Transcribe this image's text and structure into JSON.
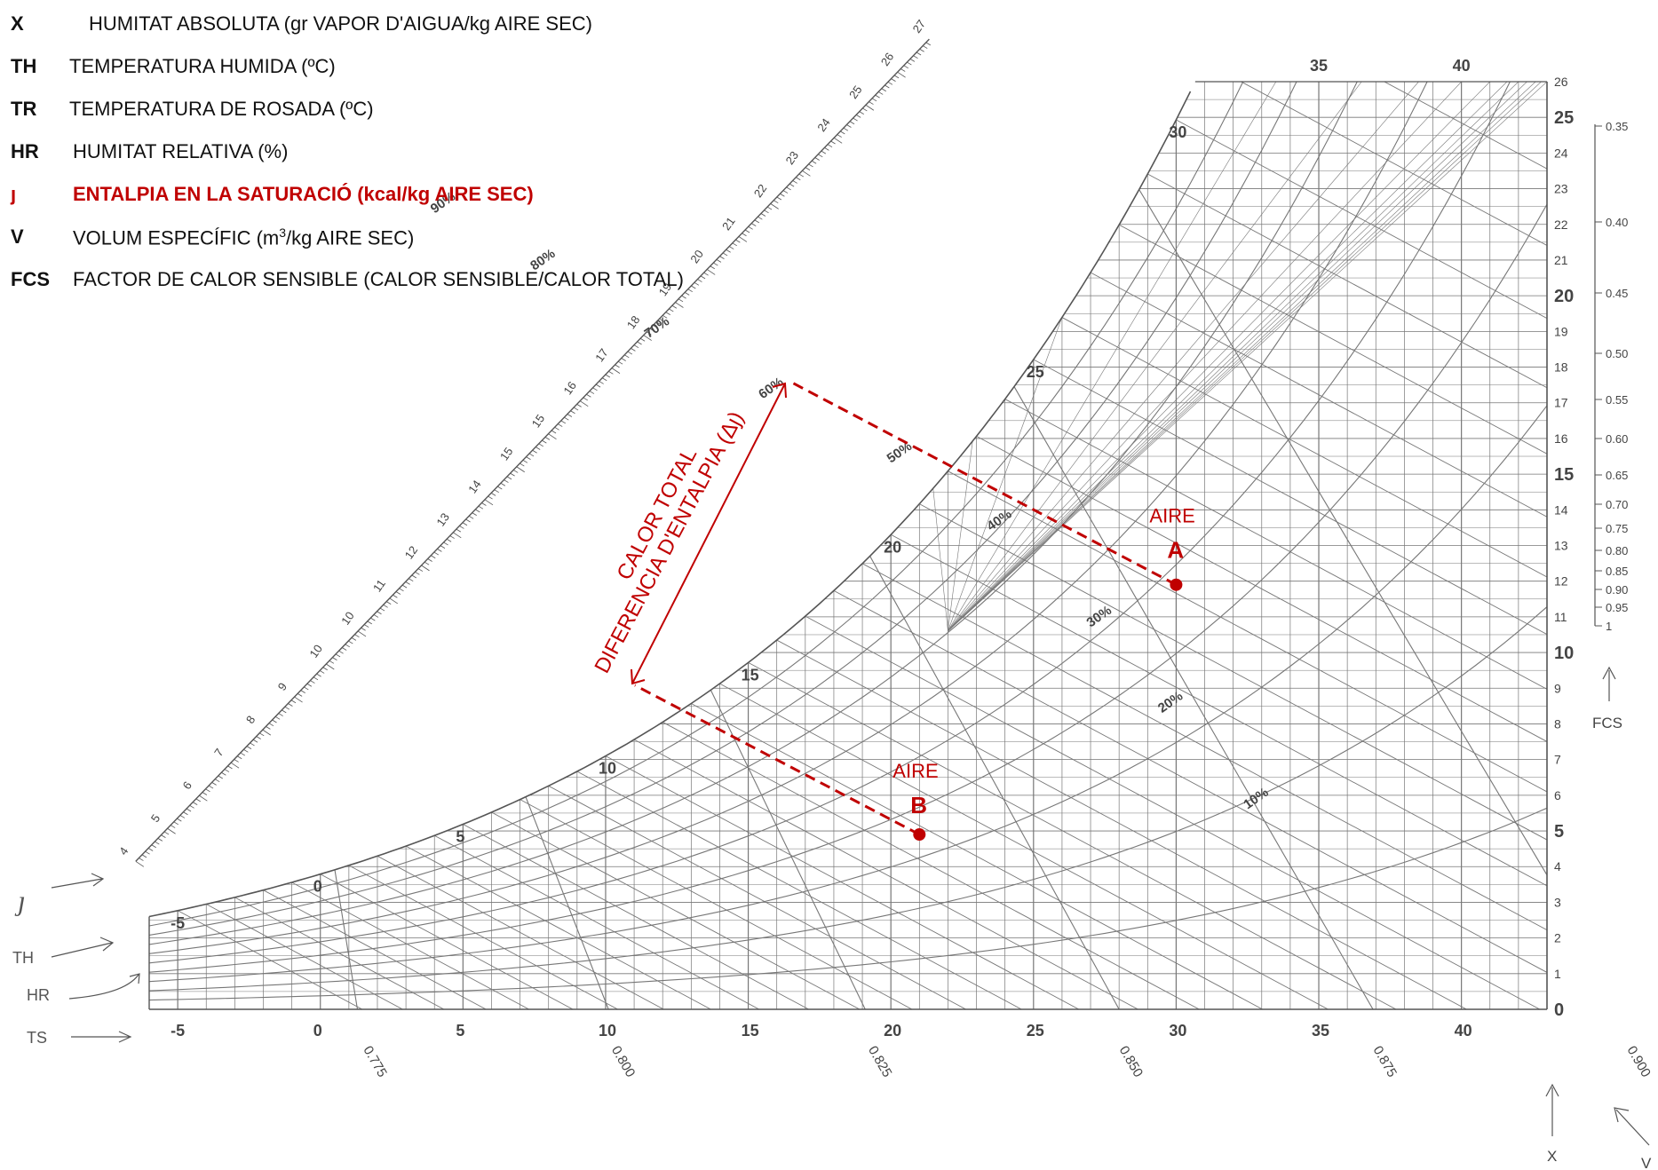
{
  "legend": [
    {
      "key": "X",
      "desc": "HUMITAT ABSOLUTA (gr VAPOR D'AIGUA/kg AIRE SEC)"
    },
    {
      "key": "TH",
      "desc": "TEMPERATURA HUMIDA (ºC)"
    },
    {
      "key": "TR",
      "desc": "TEMPERATURA DE ROSADA (ºC)"
    },
    {
      "key": "HR",
      "desc": "HUMITAT RELATIVA (%)"
    },
    {
      "key": "ȷ",
      "desc": "ENTALPIA EN LA SATURACIÓ (kcal/kg AIRE SEC)"
    },
    {
      "key": "V",
      "desc_pre": "VOLUM ESPECÍFIC (m",
      "desc_sup": "3",
      "desc_post": "/kg AIRE SEC)"
    },
    {
      "key": "FCS",
      "desc": "FACTOR DE CALOR SENSIBLE (CALOR SENSIBLE/CALOR TOTAL)"
    }
  ],
  "colors": {
    "grid": "#777777",
    "accent": "#c00000",
    "text": "#222222"
  },
  "chart_data": {
    "type": "psychrometric",
    "x_axis": {
      "name": "TS",
      "range": [
        -6,
        43
      ],
      "ticks": [
        "-5",
        "0",
        "5",
        "10",
        "15",
        "20",
        "25",
        "30",
        "35",
        "40"
      ]
    },
    "y_axis": {
      "name": "X",
      "range": [
        0,
        26
      ],
      "ticks": [
        "0",
        "1",
        "2",
        "3",
        "4",
        "5",
        "6",
        "7",
        "8",
        "9",
        "10",
        "11",
        "12",
        "13",
        "14",
        "15",
        "16",
        "17",
        "18",
        "19",
        "20",
        "21",
        "22",
        "23",
        "24",
        "25",
        "26"
      ]
    },
    "saturation_labels": [
      "-5",
      "0",
      "5",
      "10",
      "15",
      "20",
      "25",
      "30",
      "35",
      "40"
    ],
    "enthalpy_scale": [
      "4",
      "5",
      "6",
      "7",
      "8",
      "9",
      "10",
      "10",
      "11",
      "12",
      "13",
      "14",
      "15",
      "15",
      "16",
      "17",
      "18",
      "19",
      "20",
      "21",
      "22",
      "23",
      "24",
      "25",
      "26",
      "27"
    ],
    "rh_curves": [
      "10%",
      "20%",
      "30%",
      "40%",
      "50%",
      "60%",
      "70%",
      "80%",
      "90%"
    ],
    "specific_volume": [
      "0.775",
      "0.800",
      "0.825",
      "0.850",
      "0.875",
      "0.900"
    ],
    "fcs_scale": [
      "0.35",
      "0.40",
      "0.45",
      "0.50",
      "0.55",
      "0.60",
      "0.65",
      "0.70",
      "0.75",
      "0.80",
      "0.85",
      "0.90",
      "0.95",
      "1"
    ],
    "side_labels": {
      "enthalpy": "ȷ",
      "th": "TH",
      "hr": "HR",
      "ts": "TS",
      "fcs": "FCS",
      "x": "X",
      "v": "V"
    },
    "points": [
      {
        "label": "A",
        "caption": "AIRE",
        "ts": 30,
        "x": 11.9
      },
      {
        "label": "B",
        "caption": "AIRE",
        "ts": 21,
        "x": 4.9
      }
    ],
    "annotation": {
      "line1": "CALOR TOTAL",
      "line2": "DIFERENCIA D'ENTALPIA  (Δȷ)"
    }
  }
}
